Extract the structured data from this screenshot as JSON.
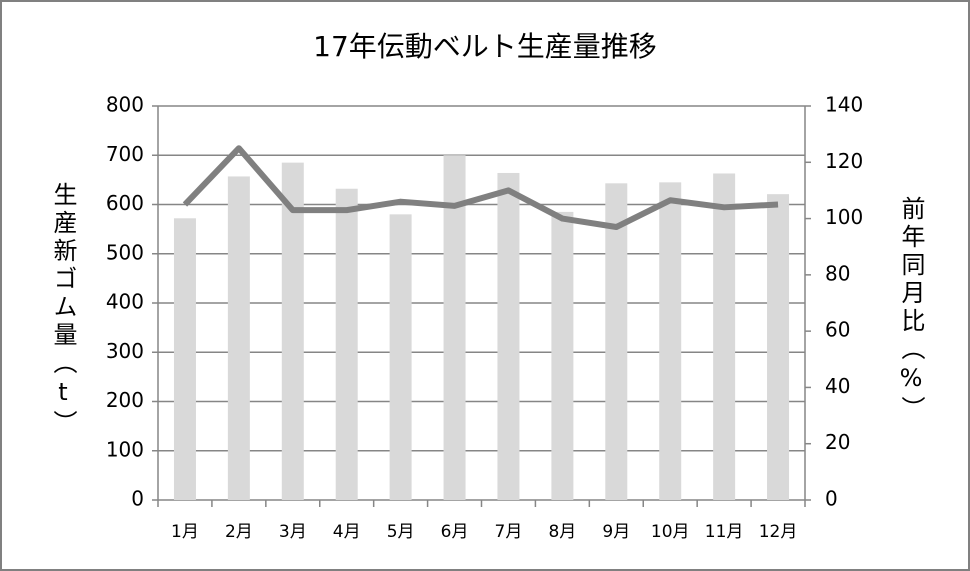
{
  "chart_data": {
    "type": "bar",
    "title": "17年伝動ベルト生産量推移",
    "y_label": "生産新ゴム量（t）",
    "y2_label": "前年同月比（%）",
    "categories": [
      "1月",
      "2月",
      "3月",
      "4月",
      "5月",
      "6月",
      "7月",
      "8月",
      "9月",
      "10月",
      "11月",
      "12月"
    ],
    "series": [
      {
        "type": "bar",
        "color": "#d9d9d9",
        "values": [
          572,
          657,
          685,
          632,
          580,
          700,
          664,
          585,
          643,
          645,
          663,
          621
        ]
      },
      {
        "type": "line",
        "axis": "y2",
        "color": "#808080",
        "values": [
          105,
          125,
          103,
          103,
          106,
          104.5,
          110,
          100,
          97,
          106.5,
          104,
          105
        ]
      }
    ],
    "ylim": [
      0,
      800
    ],
    "yticks": [
      0,
      100,
      200,
      300,
      400,
      500,
      600,
      700,
      800
    ],
    "y2lim": [
      0,
      140
    ],
    "y2ticks": [
      0,
      20,
      40,
      60,
      80,
      100,
      120,
      140
    ],
    "grid": true
  }
}
